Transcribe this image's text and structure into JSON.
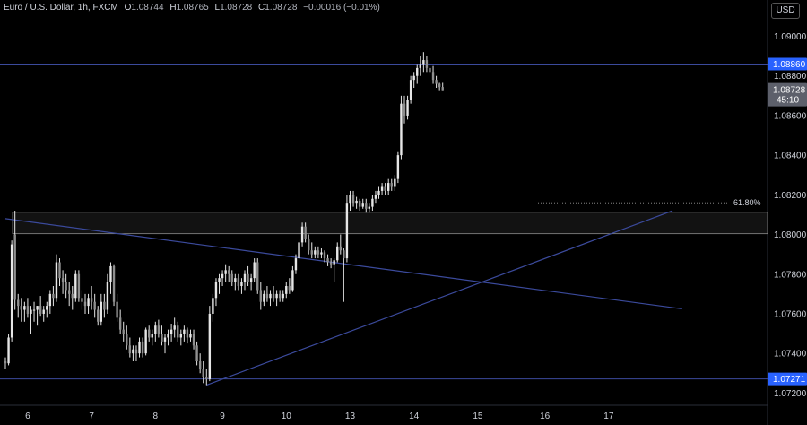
{
  "header": {
    "symbol": "Euro / U.S. Dollar, 1h, FXCM",
    "open_label": "O",
    "open": "1.08744",
    "high_label": "H",
    "high": "1.08765",
    "low_label": "L",
    "low": "1.08728",
    "close_label": "C",
    "close": "1.08728",
    "change": "−0.00016 (−0.01%)"
  },
  "currency_button": "USD",
  "colors": {
    "background": "#000000",
    "candle": "#e6e6e6",
    "line": "#3b4a9c",
    "label_blue": "#2962ff",
    "label_gray": "#5d606b",
    "text": "#d1d4dc"
  },
  "chart_data": {
    "type": "candlestick",
    "ylim": [
      1.0717,
      1.0912
    ],
    "y_ticks": [
      "1.09000",
      "1.08800",
      "1.08600",
      "1.08400",
      "1.08200",
      "1.08000",
      "1.07800",
      "1.07600",
      "1.07400",
      "1.07200"
    ],
    "x_labels": [
      {
        "label": "6",
        "bar": 7
      },
      {
        "label": "7",
        "bar": 27
      },
      {
        "label": "8",
        "bar": 47
      },
      {
        "label": "9",
        "bar": 68
      },
      {
        "label": "10",
        "bar": 88
      },
      {
        "label": "13",
        "bar": 108
      },
      {
        "label": "14",
        "bar": 128
      },
      {
        "label": "15",
        "bar": 148
      },
      {
        "label": "16",
        "bar": 169
      },
      {
        "label": "17",
        "bar": 189
      }
    ],
    "candles": [
      [
        1.0736,
        1.0738,
        1.0732,
        1.0735
      ],
      [
        1.0735,
        1.075,
        1.0734,
        1.0748
      ],
      [
        1.0748,
        1.0797,
        1.0746,
        1.0795
      ],
      [
        1.08,
        1.0812,
        1.0762,
        1.0767
      ],
      [
        1.0767,
        1.077,
        1.0758,
        1.0764
      ],
      [
        1.0764,
        1.0768,
        1.0756,
        1.0762
      ],
      [
        1.0762,
        1.0766,
        1.0756,
        1.0764
      ],
      [
        1.0764,
        1.0768,
        1.0758,
        1.076
      ],
      [
        1.076,
        1.0764,
        1.075,
        1.0762
      ],
      [
        1.0762,
        1.0766,
        1.0756,
        1.0762
      ],
      [
        1.0762,
        1.0764,
        1.0754,
        1.0764
      ],
      [
        1.0764,
        1.0769,
        1.0759,
        1.076
      ],
      [
        1.076,
        1.0764,
        1.0756,
        1.0762
      ],
      [
        1.0762,
        1.0766,
        1.0758,
        1.0764
      ],
      [
        1.0764,
        1.0772,
        1.076,
        1.077
      ],
      [
        1.077,
        1.0774,
        1.0764,
        1.0768
      ],
      [
        1.0768,
        1.079,
        1.0766,
        1.0786
      ],
      [
        1.0786,
        1.0788,
        1.0774,
        1.0778
      ],
      [
        1.0778,
        1.0782,
        1.077,
        1.0776
      ],
      [
        1.0776,
        1.078,
        1.0768,
        1.0772
      ],
      [
        1.0772,
        1.0776,
        1.0764,
        1.077
      ],
      [
        1.077,
        1.0774,
        1.0762,
        1.0768
      ],
      [
        1.0768,
        1.0782,
        1.0766,
        1.078
      ],
      [
        1.078,
        1.0782,
        1.0766,
        1.0768
      ],
      [
        1.0768,
        1.0772,
        1.0762,
        1.0766
      ],
      [
        1.0766,
        1.077,
        1.076,
        1.0764
      ],
      [
        1.0764,
        1.077,
        1.076,
        1.0768
      ],
      [
        1.0768,
        1.0774,
        1.0762,
        1.0766
      ],
      [
        1.0766,
        1.077,
        1.0758,
        1.0762
      ],
      [
        1.0762,
        1.0764,
        1.0754,
        1.0756
      ],
      [
        1.0756,
        1.077,
        1.0754,
        1.0766
      ],
      [
        1.0766,
        1.077,
        1.0758,
        1.0762
      ],
      [
        1.0762,
        1.078,
        1.076,
        1.0776
      ],
      [
        1.0776,
        1.0786,
        1.077,
        1.0784
      ],
      [
        1.0784,
        1.0785,
        1.0764,
        1.0766
      ],
      [
        1.0766,
        1.077,
        1.0756,
        1.0758
      ],
      [
        1.0758,
        1.0762,
        1.075,
        1.0752
      ],
      [
        1.0752,
        1.0756,
        1.0746,
        1.075
      ],
      [
        1.075,
        1.0754,
        1.0742,
        1.0744
      ],
      [
        1.0744,
        1.0748,
        1.0738,
        1.074
      ],
      [
        1.074,
        1.0744,
        1.0736,
        1.0742
      ],
      [
        1.0742,
        1.0744,
        1.0736,
        1.074
      ],
      [
        1.074,
        1.0748,
        1.0738,
        1.0746
      ],
      [
        1.0746,
        1.0748,
        1.0738,
        1.074
      ],
      [
        1.074,
        1.0753,
        1.0739,
        1.0752
      ],
      [
        1.0752,
        1.0754,
        1.0746,
        1.0748
      ],
      [
        1.0748,
        1.0752,
        1.0744,
        1.075
      ],
      [
        1.075,
        1.0756,
        1.0746,
        1.0754
      ],
      [
        1.0754,
        1.0757,
        1.0748,
        1.075
      ],
      [
        1.075,
        1.0754,
        1.0744,
        1.0746
      ],
      [
        1.0746,
        1.075,
        1.074,
        1.0748
      ],
      [
        1.0748,
        1.0752,
        1.0744,
        1.075
      ],
      [
        1.075,
        1.0755,
        1.0746,
        1.0752
      ],
      [
        1.0752,
        1.0758,
        1.0748,
        1.0754
      ],
      [
        1.0754,
        1.0756,
        1.0746,
        1.0748
      ],
      [
        1.0748,
        1.0752,
        1.0744,
        1.075
      ],
      [
        1.075,
        1.0754,
        1.0746,
        1.0752
      ],
      [
        1.0752,
        1.0753,
        1.0745,
        1.0748
      ],
      [
        1.0748,
        1.0752,
        1.0746,
        1.075
      ],
      [
        1.075,
        1.0752,
        1.0742,
        1.0744
      ],
      [
        1.0744,
        1.0746,
        1.0734,
        1.0736
      ],
      [
        1.0736,
        1.074,
        1.073,
        1.0732
      ],
      [
        1.0732,
        1.0736,
        1.0725,
        1.0728
      ],
      [
        1.0728,
        1.0732,
        1.0724,
        1.0727
      ],
      [
        1.0727,
        1.0764,
        1.0726,
        1.076
      ],
      [
        1.076,
        1.077,
        1.0756,
        1.0768
      ],
      [
        1.0768,
        1.0778,
        1.0764,
        1.0776
      ],
      [
        1.0776,
        1.078,
        1.077,
        1.0778
      ],
      [
        1.0778,
        1.0782,
        1.0774,
        1.078
      ],
      [
        1.078,
        1.0785,
        1.0776,
        1.0782
      ],
      [
        1.0782,
        1.0784,
        1.0776,
        1.078
      ],
      [
        1.078,
        1.0782,
        1.0774,
        1.0776
      ],
      [
        1.0776,
        1.078,
        1.0772,
        1.0778
      ],
      [
        1.0778,
        1.078,
        1.0772,
        1.0774
      ],
      [
        1.0774,
        1.0778,
        1.077,
        1.0776
      ],
      [
        1.0776,
        1.0782,
        1.0772,
        1.078
      ],
      [
        1.078,
        1.0784,
        1.0774,
        1.0776
      ],
      [
        1.0776,
        1.078,
        1.0772,
        1.0778
      ],
      [
        1.0778,
        1.0788,
        1.0776,
        1.0786
      ],
      [
        1.0786,
        1.0788,
        1.077,
        1.0772
      ],
      [
        1.0772,
        1.0776,
        1.0762,
        1.0766
      ],
      [
        1.0766,
        1.0772,
        1.0764,
        1.077
      ],
      [
        1.077,
        1.0774,
        1.0766,
        1.0768
      ],
      [
        1.0768,
        1.0772,
        1.0764,
        1.077
      ],
      [
        1.077,
        1.0774,
        1.0766,
        1.0768
      ],
      [
        1.0768,
        1.0772,
        1.0764,
        1.077
      ],
      [
        1.077,
        1.0772,
        1.0766,
        1.0768
      ],
      [
        1.0768,
        1.0772,
        1.0766,
        1.077
      ],
      [
        1.077,
        1.0776,
        1.0768,
        1.0774
      ],
      [
        1.0774,
        1.0778,
        1.077,
        1.0772
      ],
      [
        1.0772,
        1.0784,
        1.0771,
        1.0782
      ],
      [
        1.0782,
        1.079,
        1.078,
        1.0788
      ],
      [
        1.0788,
        1.0798,
        1.0786,
        1.0796
      ],
      [
        1.0796,
        1.0806,
        1.0794,
        1.0804
      ],
      [
        1.0804,
        1.0806,
        1.0796,
        1.0798
      ],
      [
        1.0798,
        1.08,
        1.079,
        1.0792
      ],
      [
        1.0792,
        1.0796,
        1.0788,
        1.079
      ],
      [
        1.079,
        1.0794,
        1.0788,
        1.0792
      ],
      [
        1.0792,
        1.0794,
        1.0788,
        1.079
      ],
      [
        1.079,
        1.0793,
        1.0788,
        1.0791
      ],
      [
        1.0791,
        1.0792,
        1.0786,
        1.0788
      ],
      [
        1.0788,
        1.079,
        1.0784,
        1.0786
      ],
      [
        1.0786,
        1.0788,
        1.0783,
        1.0785
      ],
      [
        1.0785,
        1.0788,
        1.0776,
        1.0787
      ],
      [
        1.0787,
        1.0796,
        1.0786,
        1.0794
      ],
      [
        1.0794,
        1.08,
        1.079,
        1.0792
      ],
      [
        1.0792,
        1.0793,
        1.0766,
        1.0788
      ],
      [
        1.0788,
        1.082,
        1.0786,
        1.0816
      ],
      [
        1.0816,
        1.0822,
        1.0812,
        1.082
      ],
      [
        1.082,
        1.0822,
        1.0814,
        1.0816
      ],
      [
        1.0816,
        1.0819,
        1.0813,
        1.0817
      ],
      [
        1.0817,
        1.0818,
        1.0812,
        1.0814
      ],
      [
        1.0814,
        1.0818,
        1.0813,
        1.0816
      ],
      [
        1.0816,
        1.0818,
        1.0811,
        1.0813
      ],
      [
        1.0813,
        1.0816,
        1.0811,
        1.0814
      ],
      [
        1.0814,
        1.082,
        1.0812,
        1.0818
      ],
      [
        1.0818,
        1.0822,
        1.0816,
        1.082
      ],
      [
        1.082,
        1.0824,
        1.0818,
        1.0822
      ],
      [
        1.0822,
        1.0826,
        1.082,
        1.0824
      ],
      [
        1.0824,
        1.0826,
        1.082,
        1.0822
      ],
      [
        1.0822,
        1.0828,
        1.082,
        1.0826
      ],
      [
        1.0826,
        1.0828,
        1.0822,
        1.0824
      ],
      [
        1.0824,
        1.083,
        1.0822,
        1.0828
      ],
      [
        1.0828,
        1.0842,
        1.0826,
        1.084
      ],
      [
        1.084,
        1.087,
        1.0838,
        1.0866
      ],
      [
        1.0866,
        1.087,
        1.0856,
        1.086
      ],
      [
        1.086,
        1.087,
        1.0858,
        1.0868
      ],
      [
        1.0868,
        1.088,
        1.0866,
        1.0878
      ],
      [
        1.0878,
        1.0882,
        1.0874,
        1.088
      ],
      [
        1.088,
        1.0886,
        1.0876,
        1.0884
      ],
      [
        1.0884,
        1.089,
        1.088,
        1.0886
      ],
      [
        1.0886,
        1.0892,
        1.0882,
        1.0888
      ],
      [
        1.0888,
        1.089,
        1.0882,
        1.0884
      ],
      [
        1.0884,
        1.0887,
        1.088,
        1.0882
      ],
      [
        1.0882,
        1.0885,
        1.0876,
        1.0878
      ],
      [
        1.0878,
        1.088,
        1.0874,
        1.0876
      ],
      [
        1.0876,
        1.08765,
        1.08728,
        1.08744
      ],
      [
        1.08744,
        1.08765,
        1.08728,
        1.08728
      ]
    ],
    "bar_spacing_note": "one candle per hour",
    "horizontal_levels": [
      {
        "name": "resistance",
        "price": 1.0886,
        "label": "1.08860",
        "label_style": "blue"
      },
      {
        "name": "support",
        "price": 1.07271,
        "label": "1.07271",
        "label_style": "blue"
      }
    ],
    "zone": {
      "top": 1.08112,
      "bottom": 1.08004
    },
    "fib_level": {
      "price": 1.0816,
      "label": "61.80%"
    },
    "last_price": {
      "price": 1.08728,
      "label": "1.08728",
      "countdown": "45:10"
    },
    "trendlines": [
      {
        "name": "descending-trendline",
        "from": {
          "bar": 0,
          "price": 1.0808
        },
        "to": {
          "bar": 212,
          "price": 1.07625
        }
      },
      {
        "name": "ascending-trendline",
        "from": {
          "bar": 63,
          "price": 1.0724
        },
        "to": {
          "bar": 209,
          "price": 1.0812
        }
      }
    ]
  }
}
